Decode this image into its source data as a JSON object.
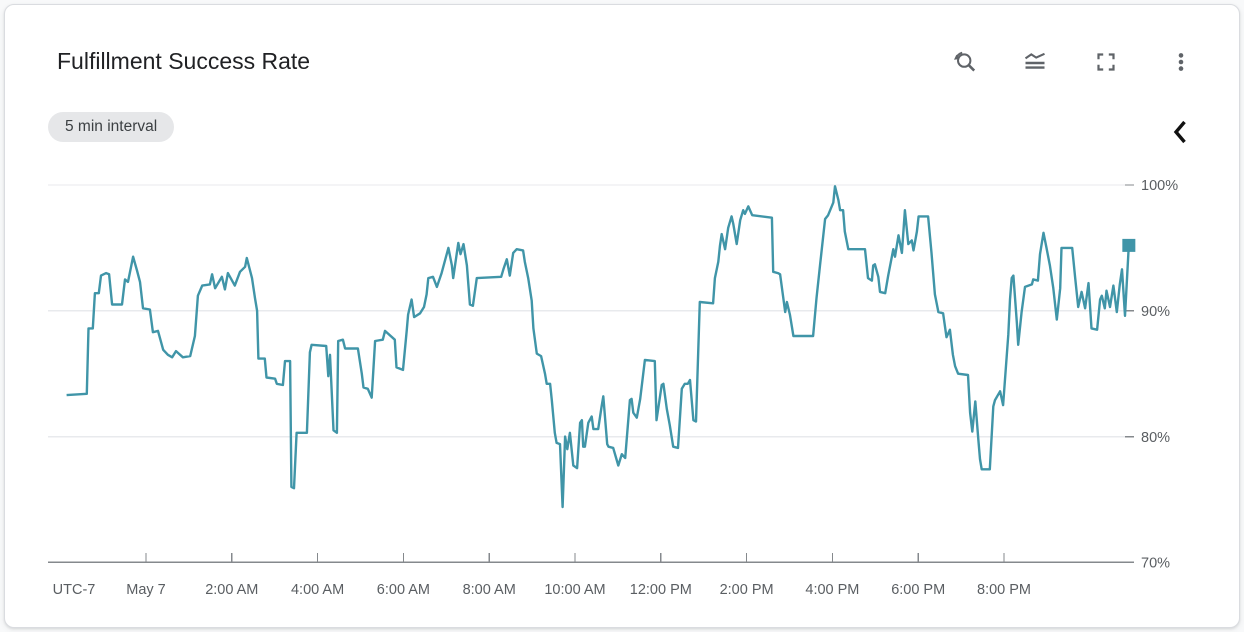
{
  "card": {
    "title": "Fulfillment Success Rate",
    "interval_chip": "5 min interval"
  },
  "toolbar": {
    "icons": [
      "reset-zoom",
      "legend-toggle",
      "fullscreen",
      "more-options"
    ],
    "collapse_chevron": "collapse-panel"
  },
  "colors": {
    "line": "#4095a8",
    "marker": "#4095a8",
    "grid": "#e8eaed",
    "axis": "#85898d",
    "tick_label": "#5a5e62",
    "title_text": "#202124",
    "chip_bg": "#e6e7e9",
    "chip_text": "#3c4043",
    "icon": "#5f6368"
  },
  "chart_data": {
    "type": "line",
    "title": "Fulfillment Success Rate",
    "interval": "5 min",
    "timezone_label": "UTC-7",
    "grid": true,
    "legend_position": "none",
    "y_axis_side": "right",
    "y_range": [
      70,
      100
    ],
    "y_ticks": [
      {
        "value": 100,
        "label": "100%"
      },
      {
        "value": 90,
        "label": "90%"
      },
      {
        "value": 80,
        "label": "80%"
      },
      {
        "value": 70,
        "label": "70%"
      }
    ],
    "x_range_hours": [
      -1.85,
      22.95
    ],
    "x_ticks": [
      {
        "hour": 0,
        "label": "May 7"
      },
      {
        "hour": 2,
        "label": "2:00 AM"
      },
      {
        "hour": 4,
        "label": "4:00 AM"
      },
      {
        "hour": 6,
        "label": "6:00 AM"
      },
      {
        "hour": 8,
        "label": "8:00 AM"
      },
      {
        "hour": 10,
        "label": "10:00 AM"
      },
      {
        "hour": 12,
        "label": "12:00 PM"
      },
      {
        "hour": 14,
        "label": "2:00 PM"
      },
      {
        "hour": 16,
        "label": "4:00 PM"
      },
      {
        "hour": 18,
        "label": "6:00 PM"
      },
      {
        "hour": 20,
        "label": "8:00 PM"
      }
    ],
    "series": [
      {
        "name": "fulfillment_success_rate_percent",
        "color": "#4095a8",
        "end_marker": true,
        "points": [
          [
            -1.85,
            83.3
          ],
          [
            -1.38,
            83.4
          ],
          [
            -1.34,
            88.6
          ],
          [
            -1.24,
            88.6
          ],
          [
            -1.19,
            91.4
          ],
          [
            -1.1,
            91.4
          ],
          [
            -1.05,
            92.8
          ],
          [
            -0.93,
            93.0
          ],
          [
            -0.86,
            92.9
          ],
          [
            -0.79,
            90.5
          ],
          [
            -0.56,
            90.5
          ],
          [
            -0.49,
            92.5
          ],
          [
            -0.42,
            92.3
          ],
          [
            -0.3,
            94.3
          ],
          [
            -0.21,
            93.2
          ],
          [
            -0.14,
            92.3
          ],
          [
            -0.07,
            90.2
          ],
          [
            0.09,
            90.1
          ],
          [
            0.16,
            88.3
          ],
          [
            0.28,
            88.4
          ],
          [
            0.4,
            86.9
          ],
          [
            0.51,
            86.5
          ],
          [
            0.61,
            86.3
          ],
          [
            0.7,
            86.8
          ],
          [
            0.86,
            86.3
          ],
          [
            1.03,
            86.4
          ],
          [
            1.14,
            88.0
          ],
          [
            1.21,
            91.2
          ],
          [
            1.31,
            92.0
          ],
          [
            1.49,
            92.1
          ],
          [
            1.54,
            92.9
          ],
          [
            1.61,
            91.8
          ],
          [
            1.77,
            92.7
          ],
          [
            1.84,
            91.7
          ],
          [
            1.91,
            93.0
          ],
          [
            2.07,
            92.0
          ],
          [
            2.19,
            93.1
          ],
          [
            2.31,
            93.5
          ],
          [
            2.35,
            94.2
          ],
          [
            2.47,
            92.6
          ],
          [
            2.54,
            91.0
          ],
          [
            2.59,
            90.0
          ],
          [
            2.62,
            86.2
          ],
          [
            2.77,
            86.2
          ],
          [
            2.81,
            84.7
          ],
          [
            3.01,
            84.6
          ],
          [
            3.05,
            84.2
          ],
          [
            3.19,
            84.1
          ],
          [
            3.24,
            86.0
          ],
          [
            3.36,
            86.0
          ],
          [
            3.39,
            76.0
          ],
          [
            3.45,
            75.9
          ],
          [
            3.51,
            80.3
          ],
          [
            3.75,
            80.3
          ],
          [
            3.82,
            86.7
          ],
          [
            3.86,
            87.3
          ],
          [
            4.2,
            87.2
          ],
          [
            4.25,
            84.8
          ],
          [
            4.29,
            86.5
          ],
          [
            4.37,
            80.5
          ],
          [
            4.45,
            80.3
          ],
          [
            4.48,
            87.6
          ],
          [
            4.59,
            87.7
          ],
          [
            4.64,
            87.0
          ],
          [
            4.94,
            87.0
          ],
          [
            5.03,
            85.0
          ],
          [
            5.07,
            83.9
          ],
          [
            5.17,
            83.8
          ],
          [
            5.26,
            83.1
          ],
          [
            5.34,
            87.6
          ],
          [
            5.52,
            87.7
          ],
          [
            5.57,
            88.4
          ],
          [
            5.8,
            87.7
          ],
          [
            5.84,
            85.5
          ],
          [
            5.99,
            85.3
          ],
          [
            6.08,
            88.5
          ],
          [
            6.11,
            89.7
          ],
          [
            6.19,
            90.9
          ],
          [
            6.25,
            89.5
          ],
          [
            6.39,
            89.8
          ],
          [
            6.48,
            90.3
          ],
          [
            6.54,
            91.3
          ],
          [
            6.58,
            92.6
          ],
          [
            6.69,
            92.7
          ],
          [
            6.78,
            91.9
          ],
          [
            6.89,
            93.0
          ],
          [
            7.05,
            95.0
          ],
          [
            7.13,
            93.6
          ],
          [
            7.16,
            92.6
          ],
          [
            7.28,
            95.4
          ],
          [
            7.33,
            94.5
          ],
          [
            7.4,
            95.3
          ],
          [
            7.48,
            93.6
          ],
          [
            7.55,
            90.5
          ],
          [
            7.62,
            90.4
          ],
          [
            7.71,
            92.6
          ],
          [
            8.28,
            92.7
          ],
          [
            8.33,
            93.3
          ],
          [
            8.41,
            94.1
          ],
          [
            8.48,
            92.8
          ],
          [
            8.56,
            94.6
          ],
          [
            8.64,
            94.9
          ],
          [
            8.79,
            94.8
          ],
          [
            8.83,
            93.9
          ],
          [
            8.91,
            92.6
          ],
          [
            8.99,
            90.8
          ],
          [
            9.03,
            88.6
          ],
          [
            9.11,
            86.6
          ],
          [
            9.21,
            86.4
          ],
          [
            9.3,
            85.0
          ],
          [
            9.34,
            84.2
          ],
          [
            9.42,
            84.2
          ],
          [
            9.46,
            82.9
          ],
          [
            9.53,
            80.3
          ],
          [
            9.57,
            79.5
          ],
          [
            9.65,
            79.4
          ],
          [
            9.71,
            74.4
          ],
          [
            9.77,
            80.0
          ],
          [
            9.82,
            79.0
          ],
          [
            9.88,
            80.3
          ],
          [
            9.96,
            77.7
          ],
          [
            10.05,
            77.5
          ],
          [
            10.12,
            81.1
          ],
          [
            10.16,
            81.3
          ],
          [
            10.19,
            79.2
          ],
          [
            10.23,
            79.2
          ],
          [
            10.31,
            81.1
          ],
          [
            10.39,
            81.6
          ],
          [
            10.43,
            80.6
          ],
          [
            10.54,
            80.6
          ],
          [
            10.62,
            82.4
          ],
          [
            10.66,
            83.2
          ],
          [
            10.75,
            79.4
          ],
          [
            10.78,
            79.2
          ],
          [
            10.89,
            79.1
          ],
          [
            11.01,
            77.7
          ],
          [
            11.09,
            78.6
          ],
          [
            11.17,
            78.3
          ],
          [
            11.28,
            82.9
          ],
          [
            11.32,
            83.0
          ],
          [
            11.36,
            81.9
          ],
          [
            11.44,
            81.5
          ],
          [
            11.52,
            83.0
          ],
          [
            11.63,
            86.1
          ],
          [
            11.86,
            86.0
          ],
          [
            11.9,
            81.3
          ],
          [
            12.02,
            84.1
          ],
          [
            12.06,
            84.2
          ],
          [
            12.14,
            82.2
          ],
          [
            12.21,
            80.9
          ],
          [
            12.29,
            79.2
          ],
          [
            12.4,
            79.1
          ],
          [
            12.49,
            83.8
          ],
          [
            12.56,
            84.2
          ],
          [
            12.63,
            84.2
          ],
          [
            12.68,
            84.5
          ],
          [
            12.76,
            81.3
          ],
          [
            12.82,
            81.2
          ],
          [
            12.91,
            90.7
          ],
          [
            13.22,
            90.6
          ],
          [
            13.26,
            92.6
          ],
          [
            13.34,
            93.9
          ],
          [
            13.38,
            95.2
          ],
          [
            13.42,
            96.1
          ],
          [
            13.5,
            94.9
          ],
          [
            13.57,
            96.6
          ],
          [
            13.65,
            97.5
          ],
          [
            13.69,
            96.9
          ],
          [
            13.77,
            95.3
          ],
          [
            13.85,
            97.2
          ],
          [
            13.92,
            98.0
          ],
          [
            13.96,
            97.7
          ],
          [
            14.04,
            98.3
          ],
          [
            14.13,
            97.6
          ],
          [
            14.59,
            97.4
          ],
          [
            14.62,
            93.1
          ],
          [
            14.73,
            93.0
          ],
          [
            14.78,
            92.9
          ],
          [
            14.86,
            90.9
          ],
          [
            14.9,
            89.9
          ],
          [
            14.94,
            90.7
          ],
          [
            15.01,
            89.7
          ],
          [
            15.09,
            88.0
          ],
          [
            15.55,
            88.0
          ],
          [
            15.63,
            91.0
          ],
          [
            15.71,
            93.6
          ],
          [
            15.83,
            97.3
          ],
          [
            15.9,
            97.6
          ],
          [
            16.02,
            98.6
          ],
          [
            16.06,
            99.9
          ],
          [
            16.14,
            98.8
          ],
          [
            16.18,
            98.0
          ],
          [
            16.25,
            98.0
          ],
          [
            16.29,
            96.3
          ],
          [
            16.37,
            94.9
          ],
          [
            16.76,
            94.9
          ],
          [
            16.83,
            92.6
          ],
          [
            16.92,
            92.4
          ],
          [
            16.95,
            93.6
          ],
          [
            16.99,
            93.7
          ],
          [
            17.07,
            92.7
          ],
          [
            17.11,
            91.5
          ],
          [
            17.23,
            91.4
          ],
          [
            17.3,
            92.8
          ],
          [
            17.42,
            94.9
          ],
          [
            17.46,
            94.3
          ],
          [
            17.54,
            96.0
          ],
          [
            17.62,
            94.6
          ],
          [
            17.69,
            98.0
          ],
          [
            17.77,
            95.3
          ],
          [
            17.85,
            95.6
          ],
          [
            17.89,
            94.8
          ],
          [
            17.97,
            96.3
          ],
          [
            18.01,
            97.5
          ],
          [
            18.23,
            97.5
          ],
          [
            18.31,
            94.6
          ],
          [
            18.39,
            91.3
          ],
          [
            18.47,
            89.9
          ],
          [
            18.58,
            89.8
          ],
          [
            18.66,
            87.9
          ],
          [
            18.74,
            88.5
          ],
          [
            18.81,
            86.5
          ],
          [
            18.86,
            85.6
          ],
          [
            18.93,
            85.0
          ],
          [
            19.16,
            84.9
          ],
          [
            19.21,
            81.9
          ],
          [
            19.26,
            80.4
          ],
          [
            19.33,
            82.8
          ],
          [
            19.4,
            79.8
          ],
          [
            19.44,
            78.2
          ],
          [
            19.48,
            77.4
          ],
          [
            19.67,
            77.4
          ],
          [
            19.75,
            82.4
          ],
          [
            19.79,
            82.9
          ],
          [
            19.91,
            83.6
          ],
          [
            19.98,
            82.5
          ],
          [
            20.1,
            88.1
          ],
          [
            20.14,
            90.9
          ],
          [
            20.18,
            92.6
          ],
          [
            20.22,
            92.8
          ],
          [
            20.3,
            89.0
          ],
          [
            20.33,
            87.3
          ],
          [
            20.41,
            89.9
          ],
          [
            20.49,
            91.9
          ],
          [
            20.65,
            92.1
          ],
          [
            20.68,
            92.5
          ],
          [
            20.79,
            92.4
          ],
          [
            20.84,
            94.5
          ],
          [
            20.92,
            96.2
          ],
          [
            20.99,
            95.0
          ],
          [
            21.07,
            93.6
          ],
          [
            21.15,
            91.8
          ],
          [
            21.23,
            89.3
          ],
          [
            21.31,
            91.8
          ],
          [
            21.34,
            95.0
          ],
          [
            21.59,
            95.0
          ],
          [
            21.66,
            92.6
          ],
          [
            21.73,
            90.3
          ],
          [
            21.81,
            91.5
          ],
          [
            21.89,
            90.2
          ],
          [
            21.97,
            92.2
          ],
          [
            22.04,
            88.6
          ],
          [
            22.17,
            88.5
          ],
          [
            22.24,
            90.9
          ],
          [
            22.28,
            91.2
          ],
          [
            22.35,
            90.2
          ],
          [
            22.39,
            91.6
          ],
          [
            22.47,
            90.3
          ],
          [
            22.55,
            92.0
          ],
          [
            22.63,
            89.9
          ],
          [
            22.7,
            92.1
          ],
          [
            22.75,
            93.3
          ],
          [
            22.82,
            89.6
          ],
          [
            22.91,
            95.2
          ]
        ]
      }
    ],
    "last_point": {
      "hour": 22.91,
      "value": 95.2
    }
  }
}
